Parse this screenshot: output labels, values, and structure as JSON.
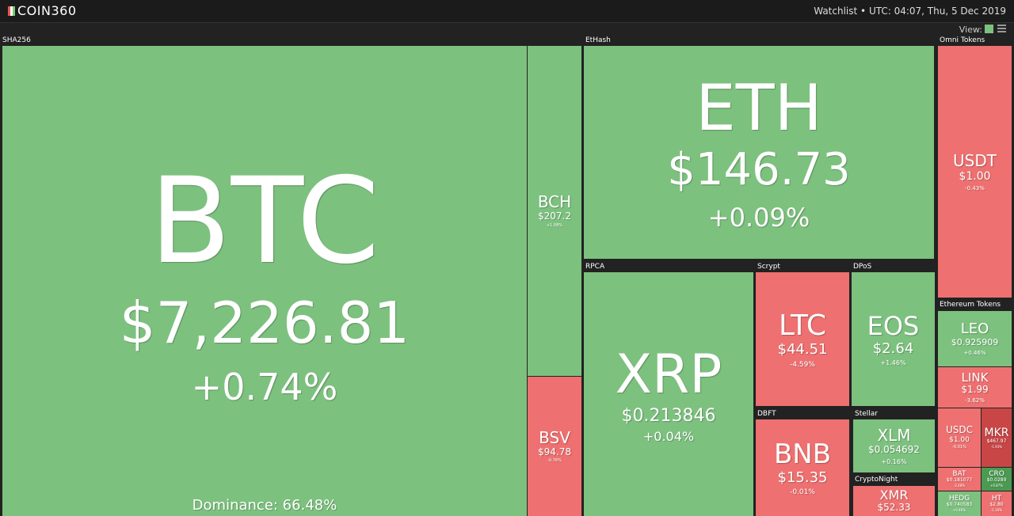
{
  "header": {
    "logo": "COIN360",
    "watchlist": "Watchlist",
    "time": "UTC: 04:07, Thu, 5 Dec 2019",
    "view_label": "View:"
  },
  "groups": [
    {
      "label": "SHA256",
      "tiles": [
        {
          "symbol": "BTC",
          "price": "$7,226.81",
          "change": "+0.74%",
          "dominance": "Dominance: 66.48%"
        },
        {
          "symbol": "BCH",
          "price": "$207.2",
          "change": "+1.08%"
        },
        {
          "symbol": "BSV",
          "price": "$94.78",
          "change": "-0.76%"
        }
      ]
    },
    {
      "label": "EtHash",
      "tiles": [
        {
          "symbol": "ETH",
          "price": "$146.73",
          "change": "+0.09%"
        }
      ]
    },
    {
      "label": "Omni Tokens",
      "tiles": [
        {
          "symbol": "USDT",
          "price": "$1.00",
          "change": "-0.43%"
        }
      ]
    },
    {
      "label": "RPCA",
      "tiles": [
        {
          "symbol": "XRP",
          "price": "$0.213846",
          "change": "+0.04%"
        }
      ]
    },
    {
      "label": "Scrypt",
      "tiles": [
        {
          "symbol": "LTC",
          "price": "$44.51",
          "change": "-4.59%"
        }
      ]
    },
    {
      "label": "DPoS",
      "tiles": [
        {
          "symbol": "EOS",
          "price": "$2.64",
          "change": "+1.46%"
        }
      ]
    },
    {
      "label": "DBFT",
      "tiles": [
        {
          "symbol": "BNB",
          "price": "$15.35",
          "change": "-0.01%"
        }
      ]
    },
    {
      "label": "Stellar",
      "tiles": [
        {
          "symbol": "XLM",
          "price": "$0.054692",
          "change": "+0.16%"
        }
      ]
    },
    {
      "label": "CryptoNight",
      "tiles": [
        {
          "symbol": "XMR",
          "price": "$52.33"
        }
      ]
    },
    {
      "label": "Ethereum Tokens",
      "tiles": [
        {
          "symbol": "LEO",
          "price": "$0.925909",
          "change": "+0.46%"
        },
        {
          "symbol": "LINK",
          "price": "$1.99",
          "change": "-3.62%"
        },
        {
          "symbol": "USDC",
          "price": "$1.00",
          "change": "-0.01%"
        },
        {
          "symbol": "MKR",
          "price": "$467.97",
          "change": "-1.93%"
        },
        {
          "symbol": "BAT",
          "price": "$0.181077",
          "change": "-2.48%"
        },
        {
          "symbol": "CRO",
          "price": "$0.0289",
          "change": "+0.87%"
        },
        {
          "symbol": "HEDG",
          "price": "$0.740583",
          "change": "+0.46%"
        },
        {
          "symbol": "HT",
          "price": "$2.80",
          "change": "-1.16%"
        }
      ]
    }
  ]
}
